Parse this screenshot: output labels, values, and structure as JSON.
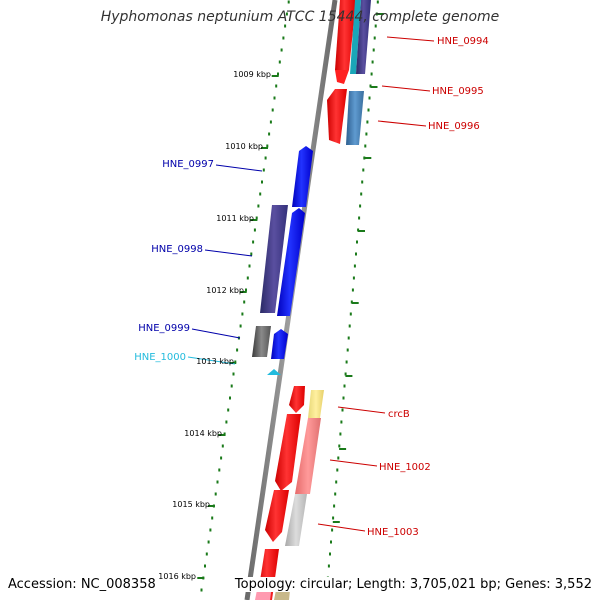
{
  "title": "Hyphomonas neptunium ATCC 15444, complete genome",
  "accession": "Accession: NC_008358",
  "topology": "Topology: circular; Length: 3,705,021 bp; Genes: 3,552",
  "ticks": [
    "1009 kbp",
    "1010 kbp",
    "1011 kbp",
    "1012 kbp",
    "1013 kbp",
    "1014 kbp",
    "1015 kbp",
    "1016 kbp"
  ],
  "genes": {
    "HNE_0994": "HNE_0994",
    "HNE_0995": "HNE_0995",
    "HNE_0996": "HNE_0996",
    "HNE_0997": "HNE_0997",
    "HNE_0998": "HNE_0998",
    "HNE_0999": "HNE_0999",
    "HNE_1000": "HNE_1000",
    "crcB": "crcB",
    "HNE_1002": "HNE_1002",
    "HNE_1003": "HNE_1003"
  },
  "colors": {
    "backbone": "#808080",
    "forward_strand": "#ff0000",
    "reverse_strand": "#0000ff",
    "tick": "#1a7a1a",
    "label_forward": "#cc0000",
    "label_reverse": "#0000aa",
    "label_cyan": "#22bbdd"
  }
}
